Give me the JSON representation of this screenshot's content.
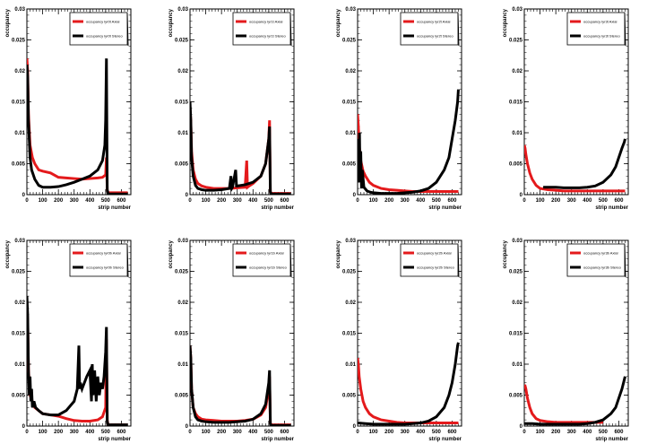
{
  "chart_data": [
    {
      "type": "line",
      "xlabel": "strip number",
      "ylabel": "occupancy",
      "xlim": [
        0,
        660
      ],
      "ylim": [
        0,
        0.03
      ],
      "xticks": [
        "0",
        "100",
        "200",
        "300",
        "400",
        "500",
        "600"
      ],
      "yticks": [
        "0",
        "0.005",
        "0.01",
        "0.015",
        "0.02",
        "0.025",
        "0.03"
      ],
      "legend": "top-right",
      "series": [
        {
          "name": "occupancy lyr0t Axial",
          "color": "#e41a1c",
          "x": [
            0,
            5,
            10,
            20,
            35,
            50,
            75,
            100,
            150,
            200,
            250,
            300,
            350,
            400,
            450,
            480,
            500,
            505,
            510,
            515,
            520,
            540,
            600,
            640
          ],
          "y": [
            0.022,
            0.02,
            0.013,
            0.008,
            0.006,
            0.005,
            0.004,
            0.0038,
            0.0035,
            0.0028,
            0.0027,
            0.0026,
            0.0025,
            0.0026,
            0.0027,
            0.0028,
            0.0032,
            0.006,
            0.0008,
            0.0003,
            0.0003,
            0.0003,
            0.0003,
            0.0003
          ]
        },
        {
          "name": "occupancy lyr0t Stereo",
          "color": "#000000",
          "x": [
            0,
            5,
            10,
            20,
            30,
            50,
            75,
            100,
            150,
            200,
            250,
            300,
            350,
            400,
            450,
            480,
            495,
            500,
            505,
            510,
            515,
            520,
            540,
            600,
            640
          ],
          "y": [
            0.021,
            0.019,
            0.012,
            0.006,
            0.004,
            0.0025,
            0.0015,
            0.0012,
            0.0012,
            0.0013,
            0.0016,
            0.002,
            0.0025,
            0.003,
            0.004,
            0.0055,
            0.008,
            0.012,
            0.022,
            0.0008,
            0.0002,
            0.0001,
            0.0001,
            0.0001,
            0.0001
          ]
        }
      ]
    },
    {
      "type": "line",
      "xlabel": "strip number",
      "ylabel": "occupancy",
      "xlim": [
        0,
        660
      ],
      "ylim": [
        0,
        0.03
      ],
      "xticks": [
        "0",
        "100",
        "200",
        "300",
        "400",
        "500",
        "600"
      ],
      "yticks": [
        "0",
        "0.005",
        "0.01",
        "0.015",
        "0.02",
        "0.025",
        "0.03"
      ],
      "legend": "top-right",
      "series": [
        {
          "name": "occupancy lyr1t Axial",
          "color": "#e41a1c",
          "x": [
            0,
            5,
            10,
            20,
            35,
            50,
            75,
            100,
            150,
            200,
            250,
            300,
            350,
            360,
            365,
            370,
            400,
            450,
            480,
            500,
            505,
            510,
            515,
            540,
            600,
            640
          ],
          "y": [
            0.014,
            0.012,
            0.007,
            0.004,
            0.0025,
            0.0018,
            0.0014,
            0.0012,
            0.001,
            0.001,
            0.001,
            0.0011,
            0.0012,
            0.0055,
            0.0012,
            0.0013,
            0.0018,
            0.003,
            0.005,
            0.009,
            0.012,
            0.0005,
            0.0002,
            0.0002,
            0.0002,
            0.0002
          ]
        },
        {
          "name": "occupancy lyr1t Stereo",
          "color": "#000000",
          "x": [
            0,
            5,
            10,
            20,
            35,
            50,
            75,
            100,
            150,
            200,
            250,
            260,
            265,
            270,
            290,
            295,
            300,
            350,
            400,
            450,
            480,
            500,
            505,
            510,
            515,
            540,
            600,
            640
          ],
          "y": [
            0.015,
            0.012,
            0.006,
            0.003,
            0.0015,
            0.001,
            0.0008,
            0.0007,
            0.0007,
            0.0008,
            0.001,
            0.003,
            0.001,
            0.0012,
            0.004,
            0.0014,
            0.0014,
            0.0016,
            0.002,
            0.003,
            0.005,
            0.009,
            0.011,
            0.0005,
            0.0001,
            0.0001,
            0.0001,
            0.0001
          ]
        }
      ]
    },
    {
      "type": "line",
      "xlabel": "strip number",
      "ylabel": "occupancy",
      "xlim": [
        0,
        660
      ],
      "ylim": [
        0,
        0.03
      ],
      "xticks": [
        "0",
        "100",
        "200",
        "300",
        "400",
        "500",
        "600"
      ],
      "yticks": [
        "0",
        "0.005",
        "0.01",
        "0.015",
        "0.02",
        "0.025",
        "0.03"
      ],
      "legend": "top-right",
      "series": [
        {
          "name": "occupancy lyr2t Axial",
          "color": "#e41a1c",
          "x": [
            0,
            5,
            10,
            20,
            35,
            50,
            75,
            100,
            150,
            200,
            250,
            300,
            350,
            400,
            450,
            500,
            550,
            600,
            640
          ],
          "y": [
            0.013,
            0.011,
            0.008,
            0.0055,
            0.0038,
            0.003,
            0.002,
            0.0015,
            0.001,
            0.0008,
            0.0007,
            0.0006,
            0.0005,
            0.0005,
            0.0005,
            0.0005,
            0.0005,
            0.0005,
            0.0005
          ]
        },
        {
          "name": "occupancy lyr2t Stereo",
          "color": "#000000",
          "x": [
            0,
            3,
            8,
            12,
            16,
            20,
            25,
            30,
            40,
            60,
            80,
            100,
            150,
            200,
            250,
            300,
            350,
            400,
            450,
            500,
            550,
            580,
            600,
            620,
            635,
            640
          ],
          "y": [
            0.002,
            0.009,
            0.003,
            0.01,
            0.002,
            0.007,
            0.001,
            0.004,
            0.0012,
            0.0006,
            0.0004,
            0.0003,
            0.0002,
            0.0002,
            0.0002,
            0.0003,
            0.0004,
            0.0006,
            0.001,
            0.002,
            0.004,
            0.006,
            0.009,
            0.012,
            0.015,
            0.017
          ]
        }
      ]
    },
    {
      "type": "line",
      "xlabel": "strip number",
      "ylabel": "occupancy",
      "xlim": [
        0,
        660
      ],
      "ylim": [
        0,
        0.03
      ],
      "xticks": [
        "0",
        "100",
        "200",
        "300",
        "400",
        "500",
        "600"
      ],
      "yticks": [
        "0",
        "0.005",
        "0.01",
        "0.015",
        "0.02",
        "0.025",
        "0.03"
      ],
      "legend": "top-right",
      "series": [
        {
          "name": "occupancy lyr3t Axial",
          "color": "#e41a1c",
          "x": [
            0,
            5,
            10,
            20,
            35,
            50,
            75,
            100,
            150,
            200,
            250,
            300,
            350,
            400,
            450,
            500,
            550,
            600,
            640
          ],
          "y": [
            0.008,
            0.0075,
            0.0065,
            0.005,
            0.0035,
            0.0025,
            0.0015,
            0.001,
            0.0008,
            0.0007,
            0.0006,
            0.0006,
            0.0006,
            0.0006,
            0.0006,
            0.0006,
            0.0006,
            0.0006,
            0.0006
          ]
        },
        {
          "name": "occupancy lyr3t Stereo",
          "color": "#000000",
          "x": [
            120,
            150,
            200,
            250,
            300,
            350,
            400,
            450,
            500,
            550,
            580,
            600,
            620,
            635,
            640
          ],
          "y": [
            0.0012,
            0.0012,
            0.0012,
            0.0011,
            0.0011,
            0.0011,
            0.0012,
            0.0014,
            0.002,
            0.0032,
            0.0045,
            0.006,
            0.0075,
            0.0085,
            0.009
          ]
        }
      ]
    },
    {
      "type": "line",
      "xlabel": "strip number",
      "ylabel": "occupancy",
      "xlim": [
        0,
        660
      ],
      "ylim": [
        0,
        0.03
      ],
      "xticks": [
        "0",
        "100",
        "200",
        "300",
        "400",
        "500",
        "600"
      ],
      "yticks": [
        "0",
        "0.005",
        "0.01",
        "0.015",
        "0.02",
        "0.025",
        "0.03"
      ],
      "legend": "top-right",
      "series": [
        {
          "name": "occupancy lyr0b Axial",
          "color": "#e41a1c",
          "x": [
            0,
            5,
            10,
            20,
            35,
            50,
            75,
            100,
            150,
            200,
            250,
            300,
            350,
            400,
            450,
            480,
            500,
            505,
            510,
            515,
            540,
            600,
            640
          ],
          "y": [
            0.019,
            0.017,
            0.009,
            0.005,
            0.004,
            0.003,
            0.0025,
            0.002,
            0.0018,
            0.0016,
            0.0012,
            0.0009,
            0.0008,
            0.0008,
            0.001,
            0.0015,
            0.003,
            0.014,
            0.001,
            0.0002,
            0.0002,
            0.0002,
            0.0002
          ]
        },
        {
          "name": "occupancy lyr0b Stereo",
          "color": "#000000",
          "x": [
            0,
            5,
            10,
            15,
            20,
            25,
            30,
            35,
            45,
            55,
            75,
            100,
            150,
            200,
            250,
            300,
            320,
            330,
            335,
            340,
            350,
            380,
            400,
            410,
            415,
            420,
            430,
            440,
            450,
            460,
            470,
            480,
            490,
            500,
            505,
            510,
            515,
            540,
            600,
            640
          ],
          "y": [
            0.021,
            0.018,
            0.009,
            0.005,
            0.008,
            0.004,
            0.006,
            0.003,
            0.004,
            0.003,
            0.0025,
            0.002,
            0.0018,
            0.0018,
            0.0025,
            0.004,
            0.006,
            0.013,
            0.006,
            0.007,
            0.006,
            0.008,
            0.009,
            0.004,
            0.01,
            0.005,
            0.009,
            0.004,
            0.008,
            0.005,
            0.007,
            0.006,
            0.008,
            0.012,
            0.016,
            0.0008,
            0.0002,
            0.0002,
            0.0002,
            0.0002
          ]
        }
      ]
    },
    {
      "type": "line",
      "xlabel": "strip number",
      "ylabel": "occupancy",
      "xlim": [
        0,
        660
      ],
      "ylim": [
        0,
        0.03
      ],
      "xticks": [
        "0",
        "100",
        "200",
        "300",
        "400",
        "500",
        "600"
      ],
      "yticks": [
        "0",
        "0.005",
        "0.01",
        "0.015",
        "0.02",
        "0.025",
        "0.03"
      ],
      "legend": "top-right",
      "series": [
        {
          "name": "occupancy lyr1b Axial",
          "color": "#e41a1c",
          "x": [
            0,
            5,
            10,
            20,
            35,
            50,
            75,
            100,
            150,
            200,
            250,
            300,
            350,
            400,
            450,
            480,
            500,
            505,
            510,
            515,
            540,
            600,
            640
          ],
          "y": [
            0.013,
            0.011,
            0.006,
            0.003,
            0.002,
            0.0015,
            0.0011,
            0.001,
            0.0009,
            0.0008,
            0.0008,
            0.0008,
            0.0009,
            0.0011,
            0.0018,
            0.003,
            0.006,
            0.008,
            0.0005,
            0.0002,
            0.0002,
            0.0002,
            0.0002
          ]
        },
        {
          "name": "occupancy lyr1b Stereo",
          "color": "#000000",
          "x": [
            0,
            5,
            10,
            20,
            35,
            50,
            75,
            100,
            150,
            200,
            250,
            300,
            350,
            400,
            450,
            480,
            500,
            505,
            510,
            515,
            540,
            600,
            640
          ],
          "y": [
            0.013,
            0.011,
            0.006,
            0.003,
            0.0015,
            0.001,
            0.0008,
            0.0007,
            0.0006,
            0.0006,
            0.0006,
            0.0007,
            0.0008,
            0.0011,
            0.002,
            0.0035,
            0.007,
            0.009,
            0.0004,
            0.0001,
            0.0001,
            0.0001,
            0.0001
          ]
        }
      ]
    },
    {
      "type": "line",
      "xlabel": "strip number",
      "ylabel": "occupancy",
      "xlim": [
        0,
        660
      ],
      "ylim": [
        0,
        0.03
      ],
      "xticks": [
        "0",
        "100",
        "200",
        "300",
        "400",
        "500",
        "600"
      ],
      "yticks": [
        "0",
        "0.005",
        "0.01",
        "0.015",
        "0.02",
        "0.025",
        "0.03"
      ],
      "legend": "top-right",
      "series": [
        {
          "name": "occupancy lyr2b Axial",
          "color": "#e41a1c",
          "x": [
            0,
            5,
            10,
            20,
            35,
            50,
            75,
            100,
            150,
            200,
            250,
            300,
            350,
            400,
            450,
            500,
            550,
            600,
            640
          ],
          "y": [
            0.011,
            0.01,
            0.008,
            0.006,
            0.004,
            0.003,
            0.002,
            0.0015,
            0.001,
            0.0008,
            0.0006,
            0.0005,
            0.0005,
            0.0005,
            0.0005,
            0.0005,
            0.0005,
            0.0005,
            0.0005
          ]
        },
        {
          "name": "occupancy lyr2b Stereo",
          "color": "#000000",
          "x": [
            0,
            50,
            100,
            150,
            200,
            250,
            300,
            350,
            400,
            450,
            500,
            550,
            580,
            600,
            620,
            635,
            640
          ],
          "y": [
            0.0005,
            0.0004,
            0.0003,
            0.0003,
            0.0003,
            0.0003,
            0.0003,
            0.0004,
            0.0005,
            0.0008,
            0.0015,
            0.003,
            0.005,
            0.007,
            0.01,
            0.013,
            0.0135
          ]
        }
      ]
    },
    {
      "type": "line",
      "xlabel": "strip number",
      "ylabel": "occupancy",
      "xlim": [
        0,
        660
      ],
      "ylim": [
        0,
        0.03
      ],
      "xticks": [
        "0",
        "100",
        "200",
        "300",
        "400",
        "500",
        "600"
      ],
      "yticks": [
        "0",
        "0.005",
        "0.01",
        "0.015",
        "0.02",
        "0.025",
        "0.03"
      ],
      "legend": "top-right",
      "series": [
        {
          "name": "occupancy lyr3b Axial",
          "color": "#e41a1c",
          "x": [
            0,
            5,
            10,
            20,
            35,
            50,
            75,
            100,
            150,
            200,
            250,
            300,
            350,
            400,
            450,
            500
          ],
          "y": [
            0.0065,
            0.0065,
            0.006,
            0.0045,
            0.003,
            0.002,
            0.0012,
            0.0009,
            0.0007,
            0.0006,
            0.0006,
            0.0006,
            0.0006,
            0.0006,
            0.0006,
            0.0006
          ]
        },
        {
          "name": "occupancy lyr3b Stereo",
          "color": "#000000",
          "x": [
            0,
            50,
            100,
            150,
            200,
            250,
            300,
            350,
            400,
            450,
            500,
            550,
            580,
            600,
            620,
            635,
            640
          ],
          "y": [
            0.0004,
            0.0004,
            0.0003,
            0.0003,
            0.0003,
            0.0003,
            0.0003,
            0.0003,
            0.0004,
            0.0006,
            0.001,
            0.002,
            0.003,
            0.0045,
            0.006,
            0.0075,
            0.008
          ]
        }
      ]
    }
  ]
}
